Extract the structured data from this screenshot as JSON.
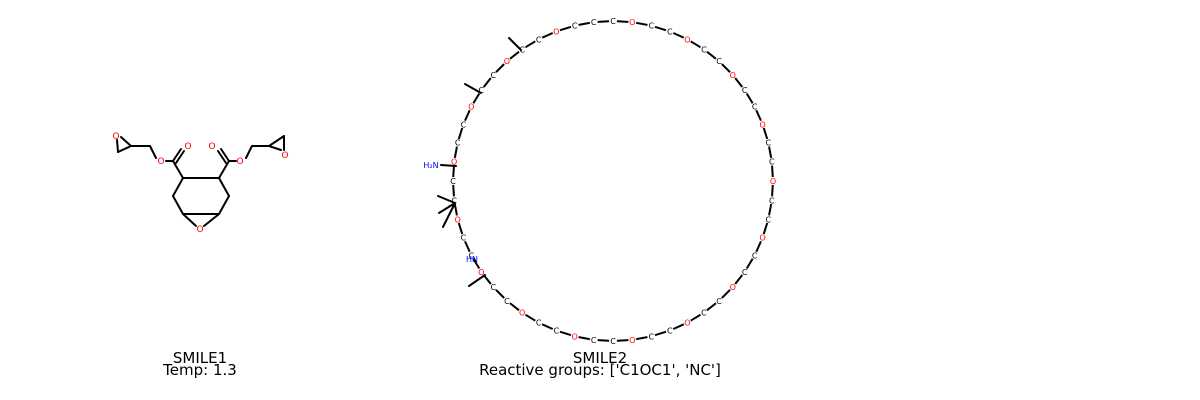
{
  "molecules": [
    {
      "name": "SMILE1",
      "info": "Temp: 1.3",
      "atom_label_oxygen": "O"
    },
    {
      "name": "SMILE2",
      "info": "Reactive groups: ['C1OC1', 'NC']",
      "atom_label_carbon": "C",
      "atom_label_oxygen": "O",
      "amine_label": "H₂N",
      "secondary_amine_label": "HN"
    }
  ],
  "colors": {
    "bond": "#000000",
    "oxygen": "#ff0000",
    "nitrogen": "#0000ff"
  }
}
